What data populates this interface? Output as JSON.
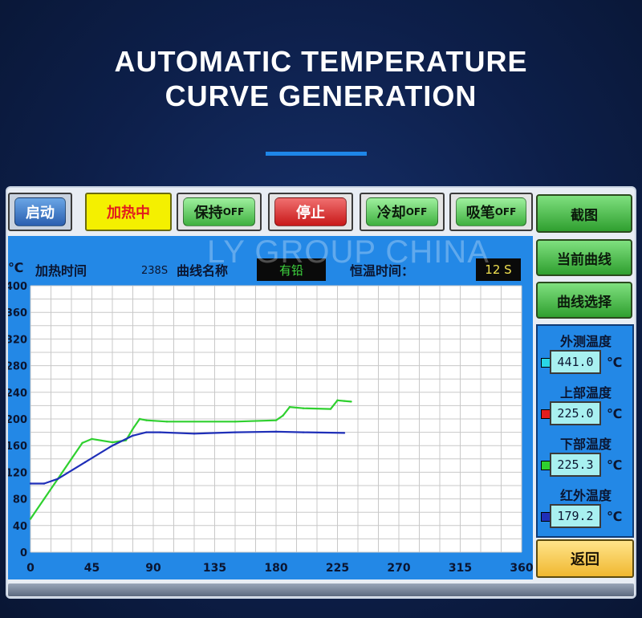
{
  "headline": {
    "line1": "AUTOMATIC TEMPERATURE",
    "line2": "CURVE GENERATION"
  },
  "watermark": "LY GROUP CHINA",
  "toolbar": {
    "start": "启动",
    "heating": "加热中",
    "hold": "保持",
    "hold_state": "OFF",
    "stop": "停止",
    "cool": "冷却",
    "cool_state": "OFF",
    "suction": "吸笔",
    "suction_state": "OFF",
    "screenshot": "截图"
  },
  "sidebar": {
    "current_curve": "当前曲线",
    "curve_select": "曲线选择",
    "back": "返回"
  },
  "info": {
    "unit": "℃",
    "heat_time_label": "加热时间",
    "heat_time_value": "238S",
    "curve_name_label": "曲线名称",
    "curve_name_value": "有铅",
    "hold_time_label": "恒温时间：",
    "hold_time_value": "12 S"
  },
  "temperatures": [
    {
      "label": "外测温度",
      "value": "441.0",
      "unit": "℃",
      "color": "#29d6e6"
    },
    {
      "label": "上部温度",
      "value": "225.0",
      "unit": "℃",
      "color": "#e21d1d"
    },
    {
      "label": "下部温度",
      "value": "225.3",
      "unit": "℃",
      "color": "#2fd02f"
    },
    {
      "label": "红外温度",
      "value": "179.2",
      "unit": "℃",
      "color": "#1f2fb8"
    }
  ],
  "chart_data": {
    "type": "line",
    "x_ticks": [
      "0",
      "45",
      "90",
      "135",
      "180",
      "225",
      "270",
      "315",
      "360"
    ],
    "y_ticks": [
      "0",
      "40",
      "80",
      "120",
      "160",
      "200",
      "240",
      "280",
      "320",
      "360",
      "400"
    ],
    "xlim": [
      0,
      360
    ],
    "ylim": [
      0,
      400
    ],
    "grid": true,
    "series": [
      {
        "color": "#2fd02f",
        "x": [
          0,
          10,
          20,
          30,
          38,
          45,
          60,
          70,
          75,
          80,
          85,
          100,
          150,
          180,
          185,
          190,
          200,
          220,
          225,
          230,
          235
        ],
        "y": [
          50,
          80,
          110,
          140,
          164,
          170,
          165,
          168,
          185,
          200,
          198,
          196,
          196,
          198,
          205,
          218,
          216,
          215,
          228,
          227,
          226
        ]
      },
      {
        "color": "#1f2fb8",
        "x": [
          0,
          10,
          20,
          40,
          60,
          75,
          85,
          95,
          120,
          150,
          180,
          200,
          230
        ],
        "y": [
          103,
          103,
          110,
          135,
          160,
          175,
          180,
          180,
          178,
          180,
          181,
          180,
          179
        ]
      }
    ]
  }
}
